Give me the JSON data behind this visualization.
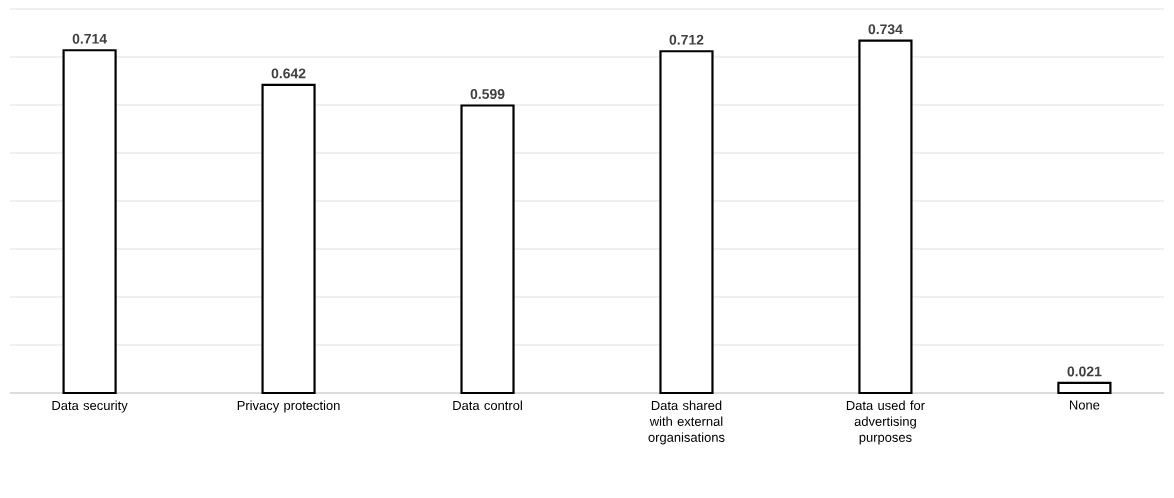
{
  "chart_data": {
    "type": "bar",
    "categories": [
      "Data security",
      "Privacy protection",
      "Data control",
      "Data shared with external organisations",
      "Data used for advertising purposes",
      "None"
    ],
    "values": [
      0.714,
      0.642,
      0.599,
      0.712,
      0.734,
      0.021
    ],
    "color": "#ffffff",
    "ylim": [
      0,
      0.8
    ],
    "grid": "y",
    "data_labels": true,
    "tick_labels": "x"
  }
}
